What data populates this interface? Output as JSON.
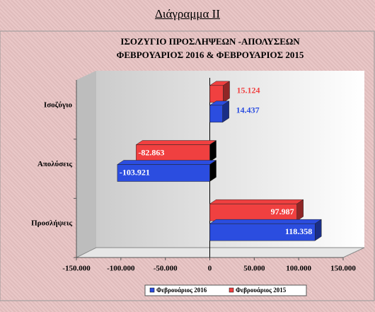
{
  "page_title": "Διάγραμμα ΙΙ",
  "chart_data": {
    "type": "bar",
    "orientation": "horizontal",
    "title": [
      "ΙΣΟΖΥΓΙΟ ΠΡΟΣΛΗΨΕΩΝ -ΑΠΟΛΥΣΕΩΝ",
      "ΦΕΒΡΟΥΑΡΙΟΣ 2016  & ΦΕΒΡΟΥΑΡΙΟΣ 2015"
    ],
    "categories": [
      "Ισοζύγιο",
      "Απολύσεις",
      "Προσλήψεις"
    ],
    "series": [
      {
        "name": "Φεβρουάριος 2016",
        "color": "#2b4de0",
        "values": [
          14437,
          -103921,
          118358
        ],
        "value_labels": [
          "14.437",
          "-103.921",
          "118.358"
        ]
      },
      {
        "name": "Φεβρουάριος 2015",
        "color": "#f04040",
        "values": [
          15124,
          -82863,
          97987
        ],
        "value_labels": [
          "15.124",
          "-82.863",
          "97.987"
        ]
      }
    ],
    "xlim": [
      -150000,
      150000
    ],
    "xticks": [
      {
        "value": -150000,
        "label": "-150.000"
      },
      {
        "value": -100000,
        "label": "-100.000"
      },
      {
        "value": -50000,
        "label": "-50.000"
      },
      0,
      {
        "value": 50000,
        "label": "50.000"
      },
      {
        "value": 100000,
        "label": "100.000"
      },
      {
        "value": 150000,
        "label": "150.000"
      }
    ],
    "legend": "bottom"
  }
}
